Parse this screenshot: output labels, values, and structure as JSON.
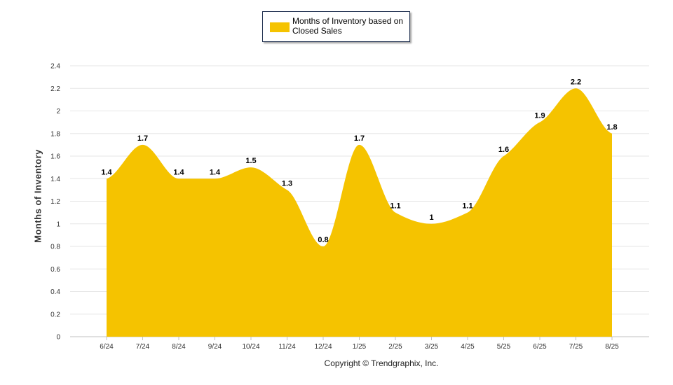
{
  "legend": {
    "label": "Months of Inventory based on Closed Sales",
    "color": "#F5C300"
  },
  "copyright": "Copyright © Trendgraphix, Inc.",
  "chart_data": {
    "type": "area",
    "x": [
      "6/24",
      "7/24",
      "8/24",
      "9/24",
      "10/24",
      "11/24",
      "12/24",
      "1/25",
      "2/25",
      "3/25",
      "4/25",
      "5/25",
      "6/25",
      "7/25",
      "8/25"
    ],
    "series": [
      {
        "name": "Months of Inventory based on Closed Sales",
        "values": [
          1.4,
          1.7,
          1.4,
          1.4,
          1.5,
          1.3,
          0.8,
          1.7,
          1.1,
          1.0,
          1.1,
          1.6,
          1.9,
          2.2,
          1.8
        ],
        "data_labels": [
          "1.4",
          "1.7",
          "1.4",
          "1.4",
          "1.5",
          "1.3",
          "0.8",
          "1.7",
          "1.1",
          "1",
          "1.1",
          "1.6",
          "1.9",
          "2.2",
          "1.8"
        ],
        "color": "#F5C300"
      }
    ],
    "ylabel": "Months of Inventory",
    "xlabel": "",
    "ylim": [
      0,
      2.4
    ],
    "yticks": [
      "0",
      "0.2",
      "0.4",
      "0.6",
      "0.8",
      "1",
      "1.2",
      "1.4",
      "1.6",
      "1.8",
      "2",
      "2.2",
      "2.4"
    ],
    "grid": true,
    "legend_position": "top-center"
  }
}
